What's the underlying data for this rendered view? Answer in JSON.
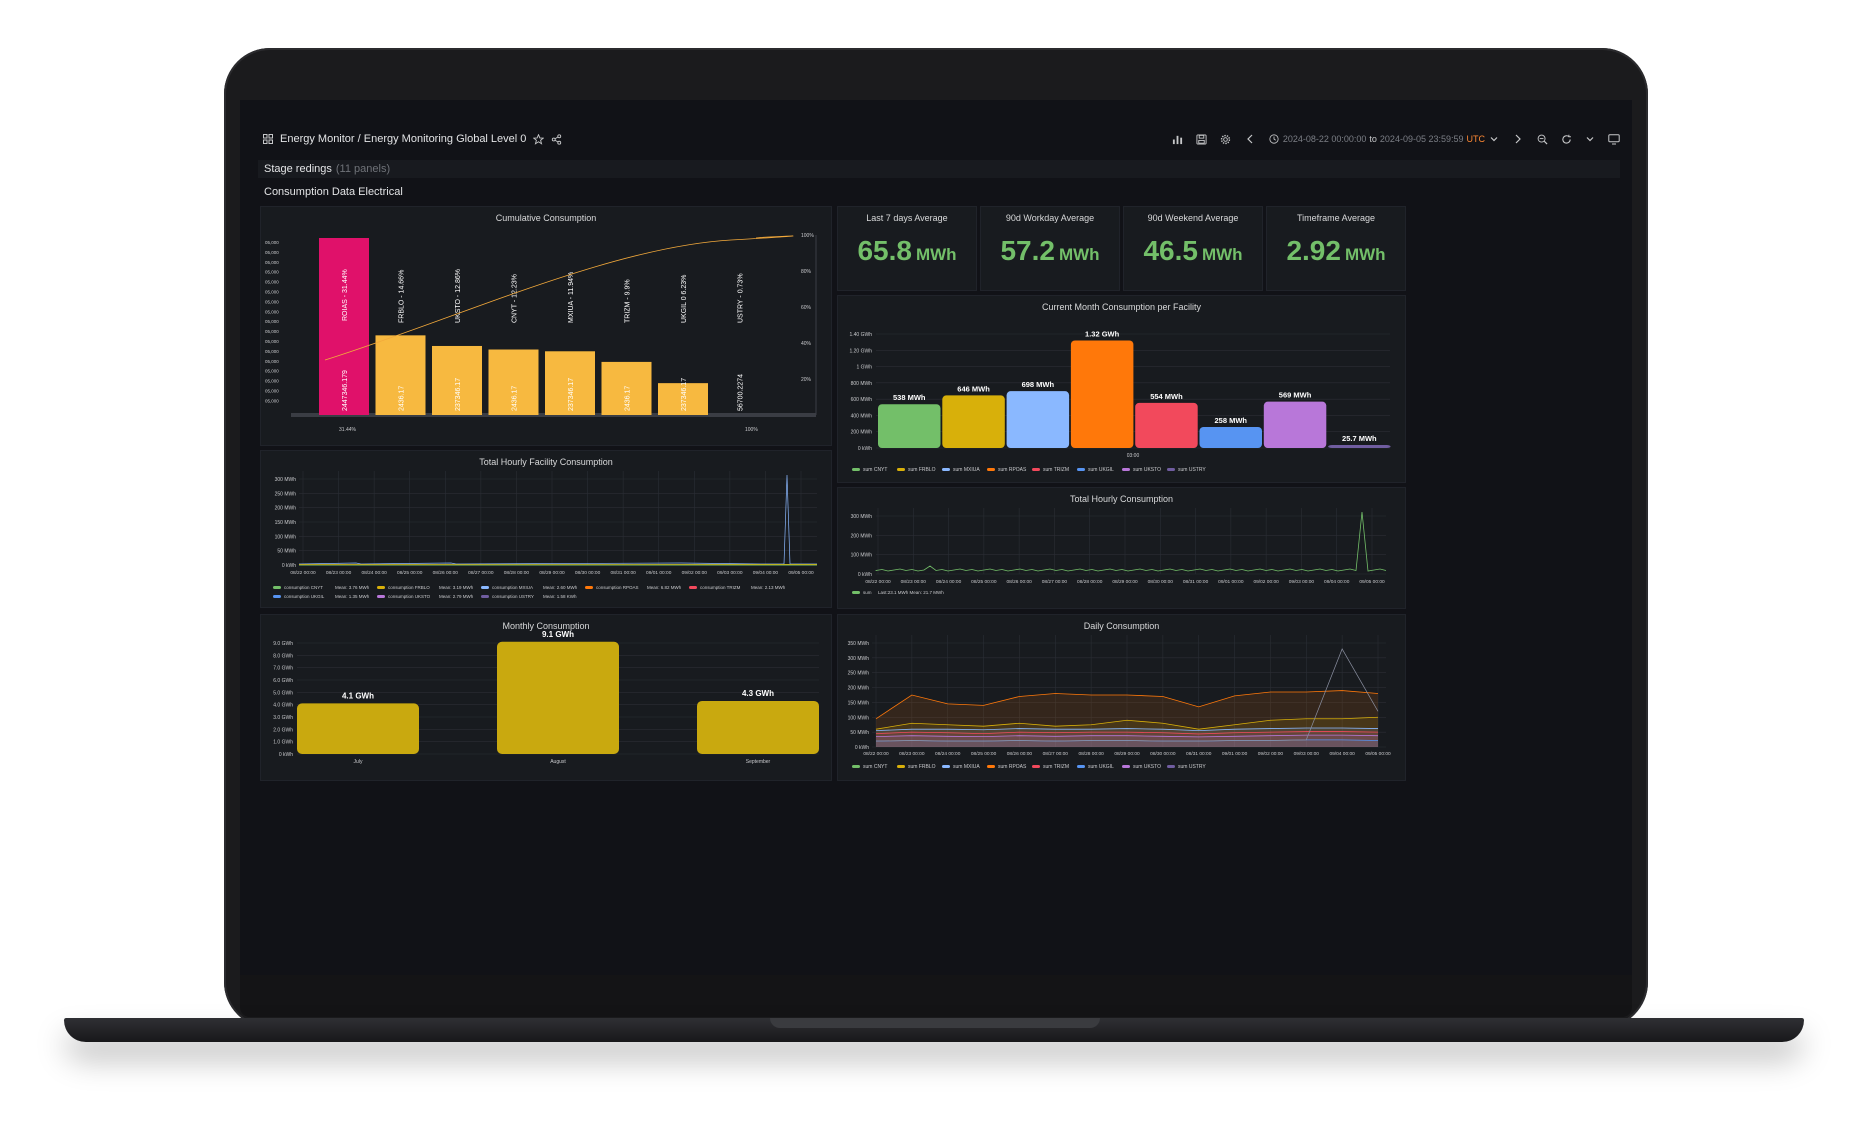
{
  "header": {
    "breadcrumb": "Energy Monitor / Energy Monitoring Global Level 0",
    "time_range_start": "2024-08-22 00:00:00",
    "time_range_to": "to",
    "time_range_end": "2024-09-05 23:59:59",
    "timezone": "UTC"
  },
  "row": {
    "title": "Stage redings",
    "count": "(11 panels)"
  },
  "section": {
    "title": "Consumption Data Electrical"
  },
  "stats": [
    {
      "title": "Last 7 days Average",
      "value": "65.8",
      "unit": "MWh"
    },
    {
      "title": "90d Workday Average",
      "value": "57.2",
      "unit": "MWh"
    },
    {
      "title": "90d Weekend Average",
      "value": "46.5",
      "unit": "MWh"
    },
    {
      "title": "Timeframe Average",
      "value": "2.92",
      "unit": "MWh"
    }
  ],
  "colors": {
    "green": "#73bf69",
    "yellow": "#f2b640",
    "orange": "#ff780a",
    "accent": "#e0226e"
  },
  "panels": {
    "cumulative": {
      "title": "Cumulative Consumption"
    },
    "facility_month": {
      "title": "Current Month Consumption per Facility"
    },
    "hourly_facility": {
      "title": "Total Hourly Facility Consumption"
    },
    "hourly_total": {
      "title": "Total Hourly Consumption"
    },
    "monthly": {
      "title": "Monthly Consumption"
    },
    "daily": {
      "title": "Daily Consumption"
    }
  },
  "chart_data": [
    {
      "id": "cumulative",
      "type": "bar",
      "title": "Cumulative Consumption",
      "categories": [
        "ROIAS - 31.44%",
        "FRBLO - 14.66%",
        "UKSTO - 12.86%",
        "CNYT - 12.23%",
        "MXIUA - 11.94%",
        "TRIZM - 9.9%",
        "UKGIL 0 6.23%",
        "USTRY - 0.73%"
      ],
      "bar_labels": [
        "2447346.179",
        "2436.17",
        "237346.17",
        "2436.17",
        "237346.17",
        "2436.17",
        "237346.17",
        "56700.2274"
      ],
      "values": [
        100,
        45,
        39,
        37,
        36,
        30,
        18,
        0
      ],
      "cumulative_pct": [
        31.44,
        46.1,
        58.96,
        71.19,
        83.13,
        93.03,
        99.26,
        100
      ],
      "y_ticks": [
        "05,000",
        "05,000",
        "05,000",
        "05,000",
        "05,000",
        "05,000",
        "05,000",
        "05,000",
        "05,000",
        "05,000",
        "05,000",
        "05,000",
        "05,000",
        "05,000",
        "05,000",
        "05,000",
        "05,000"
      ],
      "y2_ticks": [
        "100%",
        "80%",
        "60%",
        "40%",
        "20%"
      ],
      "x_ticks": [
        "31.44%",
        "100%"
      ]
    },
    {
      "id": "facility_month",
      "type": "bar",
      "title": "Current Month Consumption per Facility",
      "categories": [
        "CNYT",
        "FRBLO",
        "MXIUA",
        "RPOAS",
        "TRIZM",
        "UKGIL",
        "UKSTO",
        "USTRY"
      ],
      "values": [
        538,
        646,
        698,
        1320,
        554,
        258,
        569,
        25.7
      ],
      "value_labels": [
        "538 MWh",
        "646 MWh",
        "698 MWh",
        "1.32 GWh",
        "554 MWh",
        "258 MWh",
        "569 MWh",
        "25.7 MWh"
      ],
      "y_ticks": [
        "1.40 GWh",
        "1.20 GWh",
        "1 GWh",
        "800 MWh",
        "600 MWh",
        "400 MWh",
        "200 MWh",
        "0 kWh"
      ],
      "ylim": [
        0,
        1400
      ],
      "x_tick": "03:00",
      "legend": [
        "sum CNYT",
        "sum FRBLO",
        "sum MXIUA",
        "sum RPOAS",
        "sum TRIZM",
        "sum UKGIL",
        "sum UKSTO",
        "sum USTRY"
      ]
    },
    {
      "id": "hourly_facility",
      "type": "line",
      "title": "Total Hourly Facility Consumption",
      "y_ticks": [
        "300 MWh",
        "250 MWh",
        "200 MWh",
        "150 MWh",
        "100 MWh",
        "50 MWh",
        "0 kWh"
      ],
      "x_ticks": [
        "08/22 00:00",
        "08/23 00:00",
        "08/24 00:00",
        "08/25 00:00",
        "08/26 00:00",
        "08/27 00:00",
        "08/28 00:00",
        "08/29 00:00",
        "08/30 00:00",
        "08/31 00:00",
        "09/01 00:00",
        "09/02 00:00",
        "09/03 00:00",
        "09/04 00:00",
        "09/05 00:00"
      ],
      "legend": [
        {
          "name": "consumption CNYT",
          "mean": "Mean: 3.76 MWh"
        },
        {
          "name": "consumption FRBLO",
          "mean": "Mean: 3.19 MWh"
        },
        {
          "name": "consumption MXIUA",
          "mean": "Mean: 2.60 MWh"
        },
        {
          "name": "consumption RPOAS",
          "mean": "Mean: 6.82 MWh"
        },
        {
          "name": "consumption TRIZM",
          "mean": "Mean: 2.13 MWh"
        },
        {
          "name": "consumption UKGIL",
          "mean": "Mean: 1.35 MWh"
        },
        {
          "name": "consumption UKSTO",
          "mean": "Mean: 2.79 MWh"
        },
        {
          "name": "consumption USTRY",
          "mean": "Mean: 1.58 KWh"
        }
      ]
    },
    {
      "id": "hourly_total",
      "type": "line",
      "title": "Total Hourly Consumption",
      "y_ticks": [
        "300 MWh",
        "200 MWh",
        "100 MWh",
        "0 kWh"
      ],
      "x_ticks": [
        "08/22 00:00",
        "08/23 00:00",
        "08/24 00:00",
        "08/25 00:00",
        "08/26 00:00",
        "08/27 00:00",
        "08/28 00:00",
        "08/29 00:00",
        "08/30 00:00",
        "08/31 00:00",
        "09/01 00:00",
        "09/02 00:00",
        "09/03 00:00",
        "09/04 00:00",
        "09/05 00:00"
      ],
      "legend": [
        {
          "name": "sum",
          "mean": "Last:23.1 MWh  Mean: 21.7 MWh"
        }
      ]
    },
    {
      "id": "monthly",
      "type": "bar",
      "title": "Monthly Consumption",
      "categories": [
        "July",
        "August",
        "September"
      ],
      "values": [
        4.1,
        9.1,
        4.3
      ],
      "value_labels": [
        "4.1 GWh",
        "9.1 GWh",
        "4.3 GWh"
      ],
      "y_ticks": [
        "9.0 GWh",
        "8.0 GWh",
        "7.0 GWh",
        "6.0 GWh",
        "5.0 GWh",
        "4.0 GWh",
        "3.0 GWh",
        "2.0 GWh",
        "1.0 GWh",
        "0 kWh"
      ],
      "ylim": [
        0,
        9
      ]
    },
    {
      "id": "daily",
      "type": "area",
      "title": "Daily Consumption",
      "y_ticks": [
        "350 MWh",
        "300 MWh",
        "250 MWh",
        "200 MWh",
        "150 MWh",
        "100 MWh",
        "50 MWh",
        "0 kWh"
      ],
      "x_ticks": [
        "08/22 00:00",
        "08/23 00:00",
        "08/24 00:00",
        "08/25 00:00",
        "08/26 00:00",
        "08/27 00:00",
        "08/28 00:00",
        "08/29 00:00",
        "08/30 00:00",
        "08/31 00:00",
        "09/01 00:00",
        "09/02 00:00",
        "09/03 00:00",
        "09/04 00:00",
        "09/05 00:00"
      ],
      "legend": [
        "sum CNYT",
        "sum FRBLO",
        "sum MXIUA",
        "sum RPOAS",
        "sum TRIZM",
        "sum UKGIL",
        "sum UKSTO",
        "sum USTRY"
      ],
      "ylim": [
        0,
        350
      ]
    }
  ]
}
